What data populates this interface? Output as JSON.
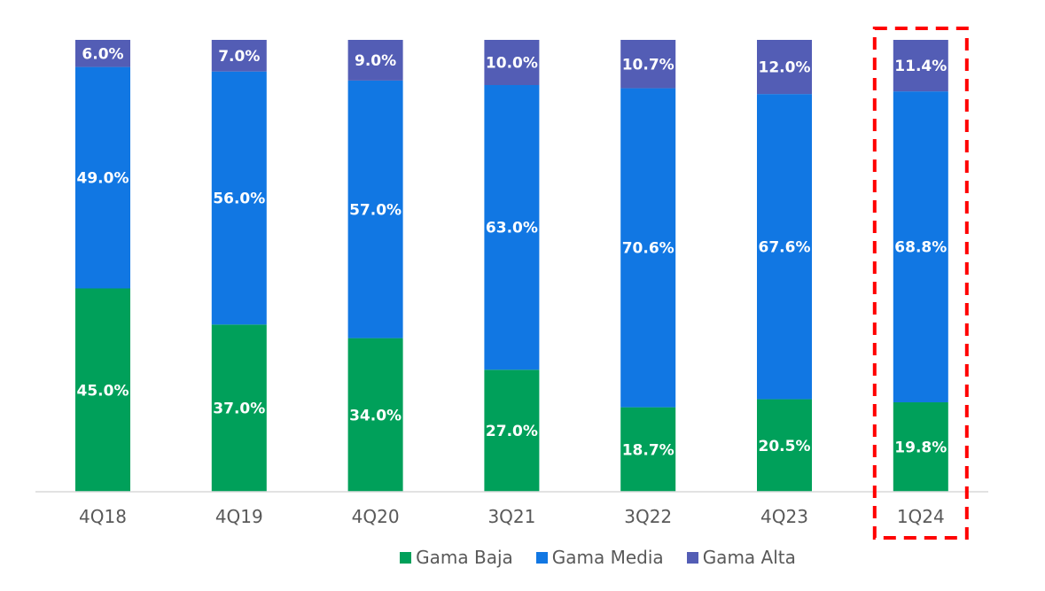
{
  "chart_data": {
    "type": "bar",
    "stacked": true,
    "title": "",
    "xlabel": "",
    "ylabel": "",
    "ylim": [
      0,
      100
    ],
    "grid": false,
    "legend_position": "bottom",
    "categories": [
      "4Q18",
      "4Q19",
      "4Q20",
      "3Q21",
      "3Q22",
      "4Q23",
      "1Q24"
    ],
    "series": [
      {
        "name": "Gama Baja",
        "color": "#00A05A",
        "values": [
          45.0,
          37.0,
          34.0,
          27.0,
          18.7,
          20.5,
          19.8
        ],
        "labels": [
          "45.0%",
          "37.0%",
          "34.0%",
          "27.0%",
          "18.7%",
          "20.5%",
          "19.8%"
        ]
      },
      {
        "name": "Gama Media",
        "color": "#1177E3",
        "values": [
          49.0,
          56.0,
          57.0,
          63.0,
          70.6,
          67.6,
          68.8
        ],
        "labels": [
          "49.0%",
          "56.0%",
          "57.0%",
          "63.0%",
          "70.6%",
          "67.6%",
          "68.8%"
        ]
      },
      {
        "name": "Gama Alta",
        "color": "#535DB5",
        "values": [
          6.0,
          7.0,
          9.0,
          10.0,
          10.7,
          12.0,
          11.4
        ],
        "labels": [
          "6.0%",
          "7.0%",
          "9.0%",
          "10.0%",
          "10.7%",
          "12.0%",
          "11.4%"
        ]
      }
    ],
    "highlight": {
      "category": "1Q24",
      "style": "dashed-box",
      "color": "#FF0000"
    }
  }
}
